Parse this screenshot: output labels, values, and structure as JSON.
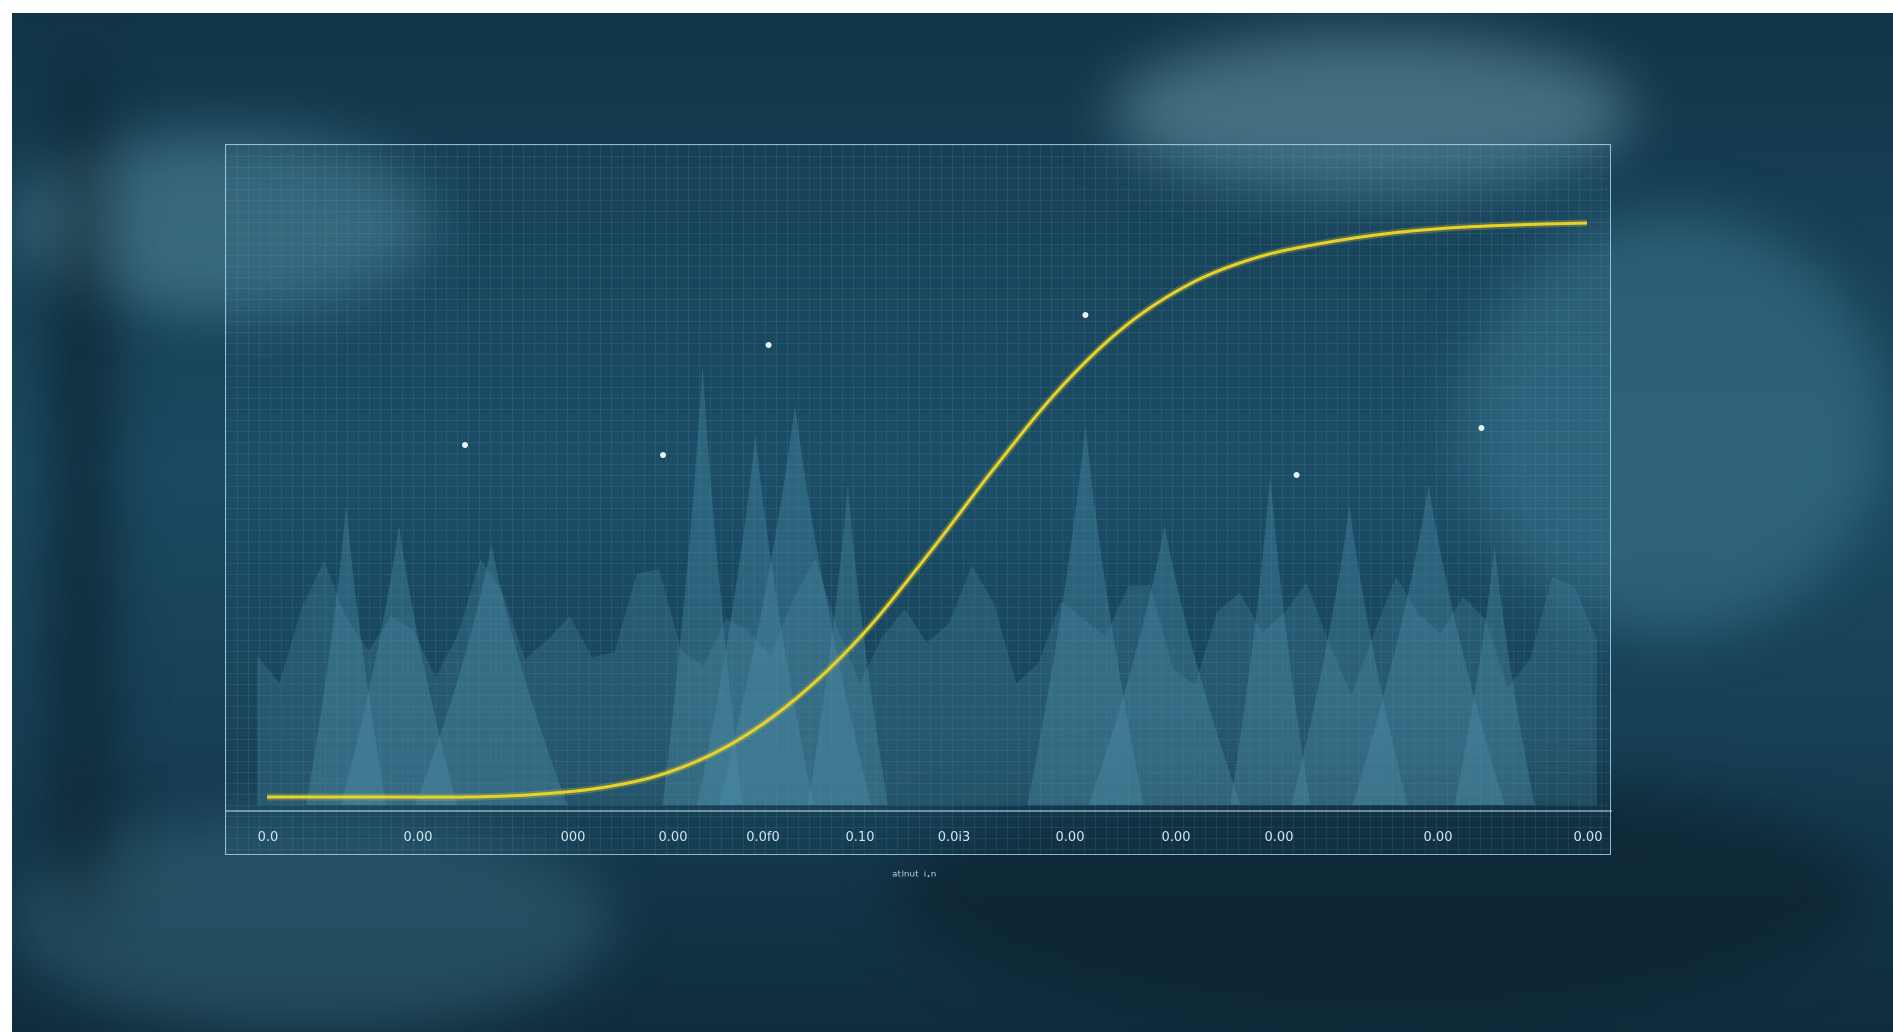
{
  "chart_data": {
    "type": "line",
    "title": "",
    "xlabel": "ᵃᵗˡⁿᵘᵗ ⁱ·ⁿ",
    "ylabel": "",
    "x_tick_labels": [
      "0.0",
      "0.00",
      "000",
      "0.00",
      "0.0f0",
      "0.10",
      "0.0i3",
      "0.00",
      "0.00",
      "0.00",
      "0.00",
      "0.00"
    ],
    "x": [
      0,
      1,
      2,
      3,
      4,
      5,
      6,
      7,
      8,
      9,
      10,
      11,
      12,
      13,
      14,
      15,
      16,
      17,
      18,
      19,
      20
    ],
    "series": [
      {
        "values": [
          0.0,
          0.0,
          0.0,
          0.0,
          0.004,
          0.015,
          0.04,
          0.09,
          0.17,
          0.28,
          0.42,
          0.57,
          0.71,
          0.82,
          0.895,
          0.94,
          0.965,
          0.982,
          0.992,
          0.997,
          1.0
        ]
      }
    ],
    "ylim": [
      0,
      1
    ],
    "grid": true,
    "colors": {
      "line": "#e8d22a",
      "grid": "#8cc8e1",
      "frame": "#bee1f0",
      "background": "#17435a",
      "peaks": "#4f93ad"
    }
  }
}
